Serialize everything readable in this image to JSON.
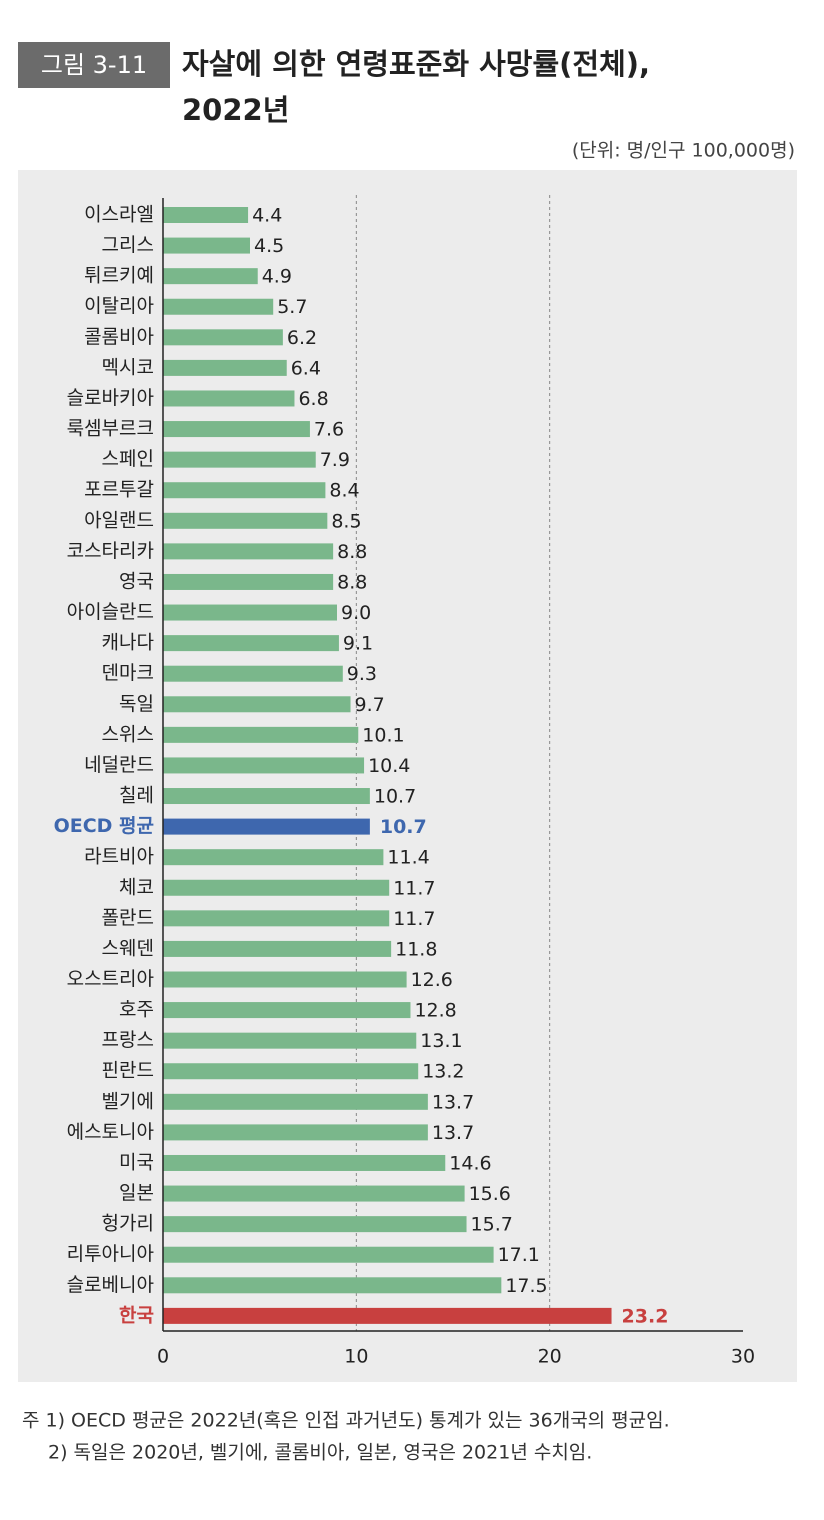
{
  "chart_data": {
    "type": "bar",
    "orientation": "horizontal",
    "figure_label": "그림 3-11",
    "title": "자살에 의한 연령표준화 사망률(전체),",
    "title_line2": "2022년",
    "unit": "(단위: 명/인구 100,000명)",
    "categories": [
      "이스라엘",
      "그리스",
      "튀르키예",
      "이탈리아",
      "콜롬비아",
      "멕시코",
      "슬로바키아",
      "룩셈부르크",
      "스페인",
      "포르투갈",
      "아일랜드",
      "코스타리카",
      "영국",
      "아이슬란드",
      "캐나다",
      "덴마크",
      "독일",
      "스위스",
      "네덜란드",
      "칠레",
      "OECD 평균",
      "라트비아",
      "체코",
      "폴란드",
      "스웨덴",
      "오스트리아",
      "호주",
      "프랑스",
      "핀란드",
      "벨기에",
      "에스토니아",
      "미국",
      "일본",
      "헝가리",
      "리투아니아",
      "슬로베니아",
      "한국"
    ],
    "values": [
      4.4,
      4.5,
      4.9,
      5.7,
      6.2,
      6.4,
      6.8,
      7.6,
      7.9,
      8.4,
      8.5,
      8.8,
      8.8,
      9.0,
      9.1,
      9.3,
      9.7,
      10.1,
      10.4,
      10.7,
      10.7,
      11.4,
      11.7,
      11.7,
      11.8,
      12.6,
      12.8,
      13.1,
      13.2,
      13.7,
      13.7,
      14.6,
      15.6,
      15.7,
      17.1,
      17.5,
      23.2
    ],
    "value_labels": [
      "4.4",
      "4.5",
      "4.9",
      "5.7",
      "6.2",
      "6.4",
      "6.8",
      "7.6",
      "7.9",
      "8.4",
      "8.5",
      "8.8",
      "8.8",
      "9.0",
      "9.1",
      "9.3",
      "9.7",
      "10.1",
      "10.4",
      "10.7",
      "10.7",
      "11.4",
      "11.7",
      "11.7",
      "11.8",
      "12.6",
      "12.8",
      "13.1",
      "13.2",
      "13.7",
      "13.7",
      "14.6",
      "15.6",
      "15.7",
      "17.1",
      "17.5",
      "23.2"
    ],
    "color": "#7ab78b",
    "colors": [
      "#7ab78b",
      "#7ab78b",
      "#7ab78b",
      "#7ab78b",
      "#7ab78b",
      "#7ab78b",
      "#7ab78b",
      "#7ab78b",
      "#7ab78b",
      "#7ab78b",
      "#7ab78b",
      "#7ab78b",
      "#7ab78b",
      "#7ab78b",
      "#7ab78b",
      "#7ab78b",
      "#7ab78b",
      "#7ab78b",
      "#7ab78b",
      "#7ab78b",
      "#3e67ae",
      "#7ab78b",
      "#7ab78b",
      "#7ab78b",
      "#7ab78b",
      "#7ab78b",
      "#7ab78b",
      "#7ab78b",
      "#7ab78b",
      "#7ab78b",
      "#7ab78b",
      "#7ab78b",
      "#7ab78b",
      "#7ab78b",
      "#7ab78b",
      "#7ab78b",
      "#c8403f"
    ],
    "xlim": [
      0,
      30
    ],
    "xticks": [
      0,
      10,
      20,
      30
    ],
    "grid": true,
    "notes": [
      "주 1) OECD 평균은 2022년(혹은 인접 과거년도) 통계가 있는 36개국의 평균임.",
      "2) 독일은 2020년, 벨기에, 콜롬비아, 일본, 영국은 2021년 수치임."
    ]
  }
}
